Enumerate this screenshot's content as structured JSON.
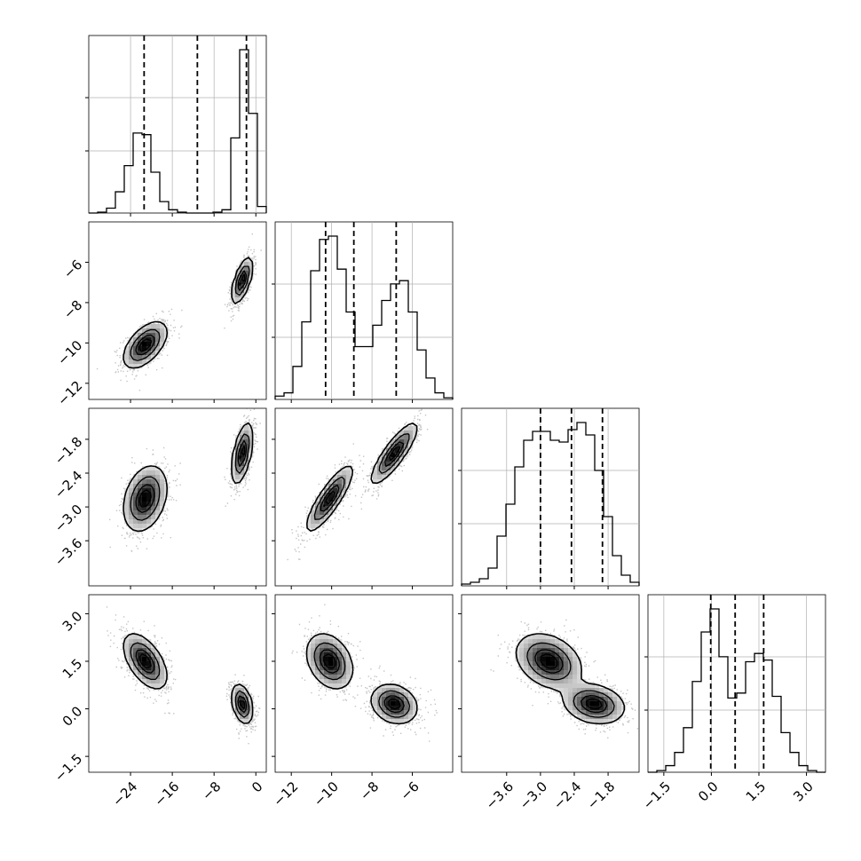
{
  "chart_data": {
    "type": "corner",
    "grid": true,
    "title": "",
    "parameters": [
      {
        "id": "p0",
        "label": "",
        "range": [
          -32,
          2
        ],
        "ticks": [
          -24,
          -16,
          -8,
          0
        ],
        "quantiles": [
          -21.4,
          -11.2,
          -1.8
        ]
      },
      {
        "id": "p1",
        "label": "",
        "range": [
          -12.8,
          -4.0
        ],
        "ticks": [
          -12,
          -10,
          -8,
          -6
        ],
        "quantiles": [
          -10.3,
          -8.9,
          -6.8
        ]
      },
      {
        "id": "p2",
        "label": "",
        "range": [
          -4.4,
          -1.25
        ],
        "ticks": [
          -3.6,
          -3.0,
          -2.4,
          -1.8
        ],
        "quantiles": [
          -3.0,
          -2.45,
          -1.9
        ]
      },
      {
        "id": "p3",
        "label": "",
        "range": [
          -2.0,
          3.6
        ],
        "ticks": [
          -1.5,
          0.0,
          1.5,
          3.0
        ],
        "quantiles": [
          -0.02,
          0.75,
          1.65
        ]
      }
    ],
    "tick_text": {
      "p0": [
        "−24",
        "−16",
        "−8",
        "0"
      ],
      "p1": [
        "−12",
        "−10",
        "−8",
        "−6"
      ],
      "p2": [
        "−3.6",
        "−3.0",
        "−2.4",
        "−1.8"
      ],
      "p3": [
        "−1.5",
        "0.0",
        "1.5",
        "3.0"
      ]
    },
    "histograms": {
      "p0": {
        "edges": [
          -32,
          -30.3,
          -28.6,
          -26.9,
          -25.2,
          -23.5,
          -21.8,
          -20.1,
          -18.4,
          -16.7,
          -15.0,
          -13.3,
          -11.6,
          -9.9,
          -8.2,
          -6.5,
          -4.8,
          -3.1,
          -1.4,
          0.3,
          2.0
        ],
        "counts": [
          0.0,
          0.005,
          0.03,
          0.13,
          0.29,
          0.49,
          0.48,
          0.25,
          0.07,
          0.02,
          0.005,
          0.0,
          0.0,
          0.0,
          0.005,
          0.02,
          0.46,
          1.0,
          0.61,
          0.04
        ]
      },
      "p1": {
        "edges": [
          -12.8,
          -12.36,
          -11.92,
          -11.48,
          -11.04,
          -10.6,
          -10.16,
          -9.72,
          -9.28,
          -8.84,
          -8.4,
          -7.96,
          -7.52,
          -7.08,
          -6.64,
          -6.2,
          -5.76,
          -5.32,
          -4.88,
          -4.44,
          -4.0
        ],
        "counts": [
          0.02,
          0.04,
          0.2,
          0.47,
          0.78,
          0.97,
          0.99,
          0.79,
          0.53,
          0.32,
          0.32,
          0.45,
          0.6,
          0.7,
          0.72,
          0.53,
          0.3,
          0.13,
          0.04,
          0.01
        ]
      },
      "p2": {
        "edges": [
          -4.4,
          -4.2425,
          -4.085,
          -3.9275,
          -3.77,
          -3.6125,
          -3.455,
          -3.2975,
          -3.14,
          -2.9825,
          -2.825,
          -2.6675,
          -2.51,
          -2.3525,
          -2.195,
          -2.0375,
          -1.88,
          -1.7225,
          -1.565,
          -1.4075,
          -1.25
        ],
        "counts": [
          0.01,
          0.02,
          0.04,
          0.1,
          0.28,
          0.46,
          0.67,
          0.82,
          0.87,
          0.87,
          0.82,
          0.81,
          0.88,
          0.92,
          0.85,
          0.65,
          0.39,
          0.17,
          0.06,
          0.02
        ]
      },
      "p3": {
        "edges": [
          -2.0,
          -1.72,
          -1.44,
          -1.16,
          -0.88,
          -0.6,
          -0.32,
          -0.04,
          0.24,
          0.52,
          0.8,
          1.08,
          1.36,
          1.64,
          1.92,
          2.2,
          2.48,
          2.76,
          3.04,
          3.32,
          3.6
        ],
        "counts": [
          0.0,
          0.01,
          0.04,
          0.12,
          0.27,
          0.55,
          0.85,
          0.99,
          0.7,
          0.45,
          0.48,
          0.67,
          0.72,
          0.68,
          0.46,
          0.24,
          0.12,
          0.04,
          0.01,
          0.0
        ]
      }
    },
    "modes": [
      {
        "weight": 0.5,
        "mean": {
          "p0": -21.2,
          "p1": -10.1,
          "p2": -2.85,
          "p3": 1.5
        },
        "sd": {
          "p0": 2.0,
          "p1": 0.55,
          "p2": 0.28,
          "p3": 0.42
        }
      },
      {
        "weight": 0.5,
        "mean": {
          "p0": -2.6,
          "p1": -6.9,
          "p2": -2.05,
          "p3": 0.15
        },
        "sd": {
          "p0": 0.95,
          "p1": 0.55,
          "p2": 0.26,
          "p3": 0.3
        }
      }
    ],
    "contour_levels": [
      0.12,
      0.39,
      0.68,
      0.86
    ]
  }
}
